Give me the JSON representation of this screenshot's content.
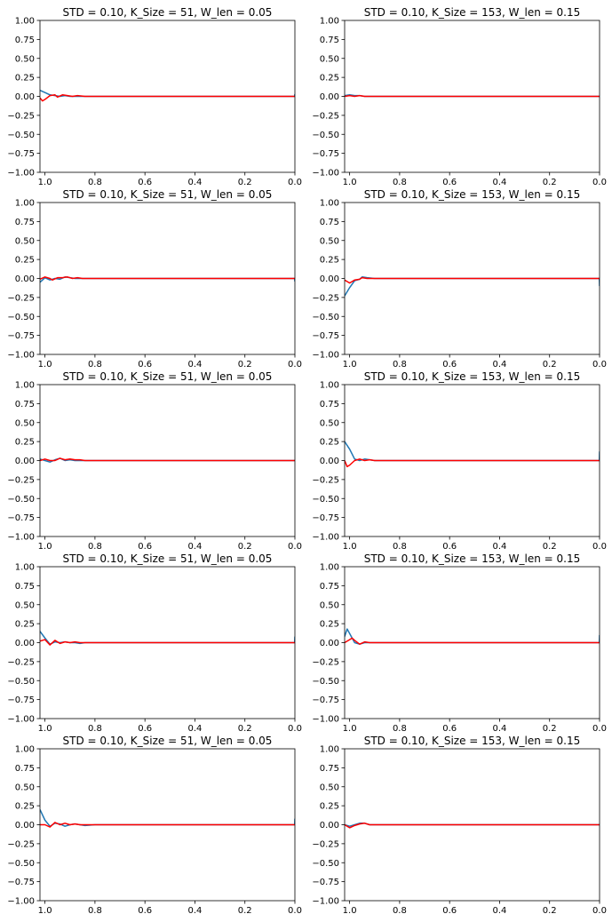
{
  "colors": {
    "blue": "#1f77b4",
    "red": "#ff0000",
    "axis": "#000000",
    "background": "#ffffff"
  },
  "chart_data": [
    {
      "type": "line",
      "title": "STD = 0.10, K_Size = 51, W_len = 0.05",
      "xlim": [
        1.02,
        0.0
      ],
      "ylim": [
        -1.0,
        1.0
      ],
      "xticks": [
        1.0,
        0.8,
        0.6,
        0.4,
        0.2,
        0.0
      ],
      "xtick_labels": [
        "1.0",
        "0.8",
        "0.6",
        "0.4",
        "0.2",
        "0.0"
      ],
      "yticks": [
        1.0,
        0.75,
        0.5,
        0.25,
        0.0,
        -0.25,
        -0.5,
        -0.75,
        -1.0
      ],
      "ytick_labels": [
        "1.00",
        "0.75",
        "0.50",
        "0.25",
        "0.00",
        "−0.25",
        "−0.50",
        "−0.75",
        "−1.00"
      ],
      "series": [
        {
          "color": "#1f77b4",
          "x": [
            1.02,
            1.0,
            0.98,
            0.96,
            0.94,
            0.92,
            0.9,
            0.88,
            0.86,
            0.84,
            0.8,
            0.6,
            0.4,
            0.2,
            0.001,
            0.0
          ],
          "y": [
            0.08,
            0.05,
            0.02,
            0.01,
            0.0,
            0.01,
            0.0,
            0.0,
            0.0,
            0.0,
            0.0,
            0.0,
            0.0,
            0.0,
            0.0,
            0.03
          ]
        },
        {
          "color": "#ff0000",
          "x": [
            1.02,
            1.01,
            1.0,
            0.98,
            0.96,
            0.95,
            0.93,
            0.91,
            0.89,
            0.87,
            0.84,
            0.8,
            0.6,
            0.4,
            0.2,
            0.0
          ],
          "y": [
            -0.02,
            -0.06,
            -0.04,
            0.01,
            0.02,
            -0.01,
            0.02,
            0.01,
            0.0,
            0.01,
            0.0,
            0.0,
            0.0,
            0.0,
            0.0,
            0.0
          ]
        }
      ]
    },
    {
      "type": "line",
      "title": "STD = 0.10, K_Size = 153, W_len = 0.15",
      "xlim": [
        1.02,
        0.0
      ],
      "ylim": [
        -1.0,
        1.0
      ],
      "xticks": [
        1.0,
        0.8,
        0.6,
        0.4,
        0.2,
        0.0
      ],
      "xtick_labels": [
        "1.0",
        "0.8",
        "0.6",
        "0.4",
        "0.2",
        "0.0"
      ],
      "yticks": [
        1.0,
        0.75,
        0.5,
        0.25,
        0.0,
        -0.25,
        -0.5,
        -0.75,
        -1.0
      ],
      "ytick_labels": [
        "1.00",
        "0.75",
        "0.50",
        "0.25",
        "0.00",
        "−0.25",
        "−0.50",
        "−0.75",
        "−1.00"
      ],
      "series": [
        {
          "color": "#1f77b4",
          "x": [
            1.02,
            1.0,
            0.98,
            0.96,
            0.94,
            0.9,
            0.8,
            0.6,
            0.4,
            0.2,
            0.0
          ],
          "y": [
            0.01,
            0.02,
            0.01,
            0.01,
            0.0,
            0.0,
            0.0,
            0.0,
            0.0,
            0.0,
            0.0
          ]
        },
        {
          "color": "#ff0000",
          "x": [
            1.02,
            1.0,
            0.98,
            0.96,
            0.94,
            0.9,
            0.8,
            0.6,
            0.4,
            0.2,
            0.0
          ],
          "y": [
            0.0,
            0.01,
            0.0,
            0.01,
            0.0,
            0.0,
            0.0,
            0.0,
            0.0,
            0.0,
            0.0
          ]
        }
      ]
    },
    {
      "type": "line",
      "title": "STD = 0.10, K_Size = 51, W_len = 0.05",
      "xlim": [
        1.02,
        0.0
      ],
      "ylim": [
        -1.0,
        1.0
      ],
      "xticks": [
        1.0,
        0.8,
        0.6,
        0.4,
        0.2,
        0.0
      ],
      "xtick_labels": [
        "1.0",
        "0.8",
        "0.6",
        "0.4",
        "0.2",
        "0.0"
      ],
      "yticks": [
        1.0,
        0.75,
        0.5,
        0.25,
        0.0,
        -0.25,
        -0.5,
        -0.75,
        -1.0
      ],
      "ytick_labels": [
        "1.00",
        "0.75",
        "0.50",
        "0.25",
        "0.00",
        "−0.25",
        "−0.50",
        "−0.75",
        "−1.00"
      ],
      "series": [
        {
          "color": "#1f77b4",
          "x": [
            1.02,
            1.0,
            0.98,
            0.96,
            0.94,
            0.92,
            0.9,
            0.88,
            0.86,
            0.84,
            0.8,
            0.6,
            0.4,
            0.2,
            0.001,
            0.0
          ],
          "y": [
            -0.05,
            0.01,
            -0.02,
            0.0,
            -0.01,
            0.02,
            0.01,
            0.0,
            0.0,
            0.0,
            0.0,
            0.0,
            0.0,
            0.0,
            0.0,
            -0.04
          ]
        },
        {
          "color": "#ff0000",
          "x": [
            1.02,
            1.0,
            0.98,
            0.97,
            0.95,
            0.93,
            0.91,
            0.89,
            0.87,
            0.85,
            0.8,
            0.6,
            0.4,
            0.2,
            0.0
          ],
          "y": [
            -0.01,
            0.02,
            0.0,
            -0.02,
            0.01,
            0.01,
            0.02,
            0.0,
            0.01,
            0.0,
            0.0,
            0.0,
            0.0,
            0.0,
            0.0
          ]
        }
      ]
    },
    {
      "type": "line",
      "title": "STD = 0.10, K_Size = 153, W_len = 0.15",
      "xlim": [
        1.02,
        0.0
      ],
      "ylim": [
        -1.0,
        1.0
      ],
      "xticks": [
        1.0,
        0.8,
        0.6,
        0.4,
        0.2,
        0.0
      ],
      "xtick_labels": [
        "1.0",
        "0.8",
        "0.6",
        "0.4",
        "0.2",
        "0.0"
      ],
      "yticks": [
        1.0,
        0.75,
        0.5,
        0.25,
        0.0,
        -0.25,
        -0.5,
        -0.75,
        -1.0
      ],
      "ytick_labels": [
        "1.00",
        "0.75",
        "0.50",
        "0.25",
        "0.00",
        "−0.25",
        "−0.50",
        "−0.75",
        "−1.00"
      ],
      "series": [
        {
          "color": "#1f77b4",
          "x": [
            1.02,
            1.0,
            0.98,
            0.96,
            0.95,
            0.93,
            0.9,
            0.8,
            0.6,
            0.4,
            0.2,
            0.001,
            0.0
          ],
          "y": [
            -0.23,
            -0.12,
            -0.03,
            -0.01,
            0.02,
            0.01,
            0.0,
            0.0,
            0.0,
            0.0,
            0.0,
            0.0,
            -0.1
          ]
        },
        {
          "color": "#ff0000",
          "x": [
            1.02,
            1.0,
            0.98,
            0.96,
            0.95,
            0.93,
            0.9,
            0.8,
            0.6,
            0.4,
            0.2,
            0.0
          ],
          "y": [
            -0.02,
            -0.06,
            -0.02,
            -0.01,
            0.01,
            0.0,
            0.0,
            0.0,
            0.0,
            0.0,
            0.0,
            0.0
          ]
        }
      ]
    },
    {
      "type": "line",
      "title": "STD = 0.10, K_Size = 51, W_len = 0.05",
      "xlim": [
        1.02,
        0.0
      ],
      "ylim": [
        -1.0,
        1.0
      ],
      "xticks": [
        1.0,
        0.8,
        0.6,
        0.4,
        0.2,
        0.0
      ],
      "xtick_labels": [
        "1.0",
        "0.8",
        "0.6",
        "0.4",
        "0.2",
        "0.0"
      ],
      "yticks": [
        1.0,
        0.75,
        0.5,
        0.25,
        0.0,
        -0.25,
        -0.5,
        -0.75,
        -1.0
      ],
      "ytick_labels": [
        "1.00",
        "0.75",
        "0.50",
        "0.25",
        "0.00",
        "−0.25",
        "−0.50",
        "−0.75",
        "−1.00"
      ],
      "series": [
        {
          "color": "#1f77b4",
          "x": [
            1.02,
            1.0,
            0.98,
            0.96,
            0.94,
            0.92,
            0.9,
            0.88,
            0.86,
            0.84,
            0.8,
            0.6,
            0.4,
            0.2,
            0.0
          ],
          "y": [
            0.02,
            0.0,
            -0.02,
            0.01,
            0.03,
            0.0,
            0.01,
            0.0,
            0.0,
            0.0,
            0.0,
            0.0,
            0.0,
            0.0,
            0.0
          ]
        },
        {
          "color": "#ff0000",
          "x": [
            1.02,
            1.0,
            0.98,
            0.96,
            0.94,
            0.92,
            0.9,
            0.88,
            0.86,
            0.84,
            0.8,
            0.6,
            0.4,
            0.2,
            0.0
          ],
          "y": [
            0.0,
            0.02,
            0.0,
            0.0,
            0.03,
            0.01,
            0.02,
            0.01,
            0.01,
            0.0,
            0.0,
            0.0,
            0.0,
            0.0,
            0.0
          ]
        }
      ]
    },
    {
      "type": "line",
      "title": "STD = 0.10, K_Size = 153, W_len = 0.15",
      "xlim": [
        1.02,
        0.0
      ],
      "ylim": [
        -1.0,
        1.0
      ],
      "xticks": [
        1.0,
        0.8,
        0.6,
        0.4,
        0.2,
        0.0
      ],
      "xtick_labels": [
        "1.0",
        "0.8",
        "0.6",
        "0.4",
        "0.2",
        "0.0"
      ],
      "yticks": [
        1.0,
        0.75,
        0.5,
        0.25,
        0.0,
        -0.25,
        -0.5,
        -0.75,
        -1.0
      ],
      "ytick_labels": [
        "1.00",
        "0.75",
        "0.50",
        "0.25",
        "0.00",
        "−0.25",
        "−0.50",
        "−0.75",
        "−1.00"
      ],
      "series": [
        {
          "color": "#1f77b4",
          "x": [
            1.02,
            1.0,
            0.98,
            0.96,
            0.94,
            0.92,
            0.9,
            0.8,
            0.6,
            0.4,
            0.2,
            0.001,
            0.0
          ],
          "y": [
            0.25,
            0.15,
            0.02,
            0.0,
            0.02,
            0.01,
            0.0,
            0.0,
            0.0,
            0.0,
            0.0,
            0.0,
            0.12
          ]
        },
        {
          "color": "#ff0000",
          "x": [
            1.02,
            1.01,
            1.0,
            0.98,
            0.96,
            0.94,
            0.92,
            0.9,
            0.8,
            0.6,
            0.4,
            0.2,
            0.0
          ],
          "y": [
            0.0,
            -0.08,
            -0.06,
            0.0,
            0.02,
            0.0,
            0.01,
            0.0,
            0.0,
            0.0,
            0.0,
            0.0,
            0.0
          ]
        }
      ]
    },
    {
      "type": "line",
      "title": "STD = 0.10, K_Size = 51, W_len = 0.05",
      "xlim": [
        1.02,
        0.0
      ],
      "ylim": [
        -1.0,
        1.0
      ],
      "xticks": [
        1.0,
        0.8,
        0.6,
        0.4,
        0.2,
        0.0
      ],
      "xtick_labels": [
        "1.0",
        "0.8",
        "0.6",
        "0.4",
        "0.2",
        "0.0"
      ],
      "yticks": [
        1.0,
        0.75,
        0.5,
        0.25,
        0.0,
        -0.25,
        -0.5,
        -0.75,
        -1.0
      ],
      "ytick_labels": [
        "1.00",
        "0.75",
        "0.50",
        "0.25",
        "0.00",
        "−0.25",
        "−0.50",
        "−0.75",
        "−1.00"
      ],
      "series": [
        {
          "color": "#1f77b4",
          "x": [
            1.02,
            1.0,
            0.98,
            0.96,
            0.94,
            0.92,
            0.9,
            0.88,
            0.86,
            0.84,
            0.8,
            0.6,
            0.4,
            0.2,
            0.001,
            0.0
          ],
          "y": [
            0.15,
            0.06,
            -0.02,
            0.01,
            0.0,
            0.01,
            0.0,
            0.0,
            -0.01,
            0.0,
            0.0,
            0.0,
            0.0,
            0.0,
            0.0,
            0.08
          ]
        },
        {
          "color": "#ff0000",
          "x": [
            1.02,
            1.0,
            0.98,
            0.96,
            0.94,
            0.92,
            0.9,
            0.88,
            0.86,
            0.84,
            0.8,
            0.6,
            0.4,
            0.2,
            0.0
          ],
          "y": [
            0.02,
            0.04,
            -0.03,
            0.03,
            -0.01,
            0.01,
            0.0,
            0.01,
            0.0,
            0.0,
            0.0,
            0.0,
            0.0,
            0.0,
            0.0
          ]
        }
      ]
    },
    {
      "type": "line",
      "title": "STD = 0.10, K_Size = 153, W_len = 0.15",
      "xlim": [
        1.02,
        0.0
      ],
      "ylim": [
        -1.0,
        1.0
      ],
      "xticks": [
        1.0,
        0.8,
        0.6,
        0.4,
        0.2,
        0.0
      ],
      "xtick_labels": [
        "1.0",
        "0.8",
        "0.6",
        "0.4",
        "0.2",
        "0.0"
      ],
      "yticks": [
        1.0,
        0.75,
        0.5,
        0.25,
        0.0,
        -0.25,
        -0.5,
        -0.75,
        -1.0
      ],
      "ytick_labels": [
        "1.00",
        "0.75",
        "0.50",
        "0.25",
        "0.00",
        "−0.25",
        "−0.50",
        "−0.75",
        "−1.00"
      ],
      "series": [
        {
          "color": "#1f77b4",
          "x": [
            1.02,
            1.01,
            1.0,
            0.98,
            0.96,
            0.94,
            0.92,
            0.9,
            0.8,
            0.6,
            0.4,
            0.2,
            0.001,
            0.0
          ],
          "y": [
            0.08,
            0.18,
            0.12,
            0.0,
            -0.02,
            0.0,
            0.0,
            0.0,
            0.0,
            0.0,
            0.0,
            0.0,
            0.0,
            0.1
          ]
        },
        {
          "color": "#ff0000",
          "x": [
            1.02,
            1.0,
            0.99,
            0.98,
            0.96,
            0.94,
            0.92,
            0.9,
            0.8,
            0.6,
            0.4,
            0.2,
            0.0
          ],
          "y": [
            0.0,
            0.04,
            0.06,
            0.03,
            -0.02,
            0.01,
            0.0,
            0.0,
            0.0,
            0.0,
            0.0,
            0.0,
            0.0
          ]
        }
      ]
    },
    {
      "type": "line",
      "title": "STD = 0.10, K_Size = 51, W_len = 0.05",
      "xlim": [
        1.02,
        0.0
      ],
      "ylim": [
        -1.0,
        1.0
      ],
      "xticks": [
        1.0,
        0.8,
        0.6,
        0.4,
        0.2,
        0.0
      ],
      "xtick_labels": [
        "1.0",
        "0.8",
        "0.6",
        "0.4",
        "0.2",
        "0.0"
      ],
      "yticks": [
        1.0,
        0.75,
        0.5,
        0.25,
        0.0,
        -0.25,
        -0.5,
        -0.75,
        -1.0
      ],
      "ytick_labels": [
        "1.00",
        "0.75",
        "0.50",
        "0.25",
        "0.00",
        "−0.25",
        "−0.50",
        "−0.75",
        "−1.00"
      ],
      "series": [
        {
          "color": "#1f77b4",
          "x": [
            1.02,
            1.0,
            0.98,
            0.96,
            0.94,
            0.92,
            0.9,
            0.88,
            0.86,
            0.84,
            0.8,
            0.6,
            0.4,
            0.2,
            0.001,
            0.0
          ],
          "y": [
            0.2,
            0.06,
            -0.02,
            0.02,
            0.01,
            -0.02,
            0.0,
            0.01,
            0.0,
            -0.01,
            0.0,
            0.0,
            0.0,
            0.0,
            0.0,
            0.08
          ]
        },
        {
          "color": "#ff0000",
          "x": [
            1.02,
            1.0,
            0.98,
            0.96,
            0.94,
            0.92,
            0.9,
            0.88,
            0.86,
            0.84,
            0.8,
            0.6,
            0.4,
            0.2,
            0.0
          ],
          "y": [
            0.0,
            0.0,
            -0.03,
            0.03,
            0.0,
            0.02,
            0.0,
            0.01,
            0.0,
            0.0,
            0.0,
            0.0,
            0.0,
            0.0,
            0.0
          ]
        }
      ]
    },
    {
      "type": "line",
      "title": "STD = 0.10, K_Size = 153, W_len = 0.15",
      "xlim": [
        1.02,
        0.0
      ],
      "ylim": [
        -1.0,
        1.0
      ],
      "xticks": [
        1.0,
        0.8,
        0.6,
        0.4,
        0.2,
        0.0
      ],
      "xtick_labels": [
        "1.0",
        "0.8",
        "0.6",
        "0.4",
        "0.2",
        "0.0"
      ],
      "yticks": [
        1.0,
        0.75,
        0.5,
        0.25,
        0.0,
        -0.25,
        -0.5,
        -0.75,
        -1.0
      ],
      "ytick_labels": [
        "1.00",
        "0.75",
        "0.50",
        "0.25",
        "0.00",
        "−0.25",
        "−0.50",
        "−0.75",
        "−1.00"
      ],
      "series": [
        {
          "color": "#1f77b4",
          "x": [
            1.02,
            1.0,
            0.98,
            0.96,
            0.94,
            0.92,
            0.9,
            0.8,
            0.6,
            0.4,
            0.2,
            0.0
          ],
          "y": [
            0.0,
            -0.02,
            0.0,
            0.02,
            0.02,
            0.0,
            0.0,
            0.0,
            0.0,
            0.0,
            0.0,
            0.0
          ]
        },
        {
          "color": "#ff0000",
          "x": [
            1.02,
            1.0,
            0.98,
            0.96,
            0.94,
            0.92,
            0.9,
            0.8,
            0.6,
            0.4,
            0.2,
            0.0
          ],
          "y": [
            0.0,
            -0.04,
            -0.01,
            0.01,
            0.02,
            0.0,
            0.0,
            0.0,
            0.0,
            0.0,
            0.0,
            0.0
          ]
        }
      ]
    }
  ]
}
